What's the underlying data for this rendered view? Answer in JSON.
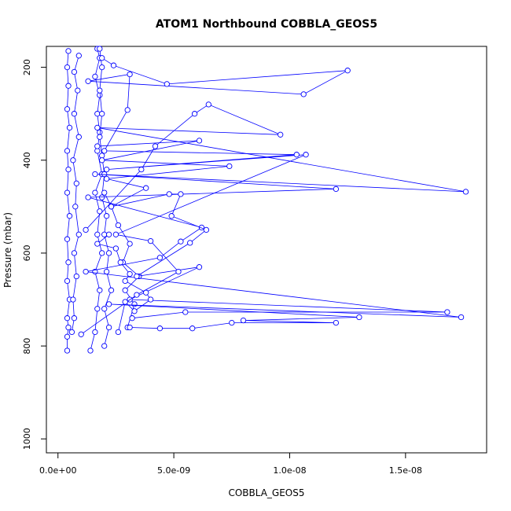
{
  "chart_data": {
    "type": "line",
    "title": "ATOM1 Northbound COBBLA_GEOS5",
    "xlabel": "COBBLA_GEOS5",
    "ylabel": "Pressure (mbar)",
    "xlim": [
      -5e-10,
      1.85e-08
    ],
    "ylim": [
      1030,
      155
    ],
    "y_reversed": true,
    "x_ticks": [
      0,
      5e-09,
      1e-08,
      1.5e-08
    ],
    "x_tick_labels": [
      "0.0e+00",
      "5.0e-09",
      "1.0e-08",
      "1.5e-08"
    ],
    "y_ticks": [
      200,
      400,
      600,
      800,
      1000
    ],
    "y_tick_labels": [
      "200",
      "400",
      "600",
      "800",
      "1000"
    ],
    "marker": "open-circle",
    "color": "#0000ff",
    "grid": false,
    "legend": "none",
    "series": [
      {
        "values": [
          [
            4e-10,
            810
          ],
          [
            4e-10,
            780
          ],
          [
            4.5e-10,
            760
          ],
          [
            4e-10,
            740
          ],
          [
            5e-10,
            700
          ],
          [
            4e-10,
            660
          ],
          [
            4.5e-10,
            620
          ],
          [
            4e-10,
            570
          ],
          [
            5e-10,
            520
          ],
          [
            4e-10,
            470
          ],
          [
            4.5e-10,
            420
          ],
          [
            4e-10,
            380
          ],
          [
            5e-10,
            330
          ],
          [
            4e-10,
            290
          ],
          [
            4.5e-10,
            240
          ],
          [
            4e-10,
            200
          ],
          [
            4.5e-10,
            165
          ]
        ]
      },
      {
        "values": [
          [
            6e-10,
            770
          ],
          [
            7e-10,
            740
          ],
          [
            6.5e-10,
            700
          ],
          [
            8e-10,
            650
          ],
          [
            7e-10,
            600
          ],
          [
            9e-10,
            560
          ],
          [
            7.5e-10,
            500
          ],
          [
            8e-10,
            450
          ],
          [
            6.5e-10,
            400
          ],
          [
            9e-10,
            350
          ],
          [
            7e-10,
            300
          ],
          [
            8.5e-10,
            250
          ],
          [
            7e-10,
            210
          ],
          [
            9e-10,
            175
          ]
        ]
      },
      {
        "values": [
          [
            1.4e-09,
            810
          ],
          [
            1.6e-09,
            770
          ],
          [
            1.7e-09,
            720
          ],
          [
            1.8e-09,
            680
          ],
          [
            1.6e-09,
            640
          ],
          [
            1.9e-09,
            600
          ],
          [
            1.7e-09,
            560
          ],
          [
            1.8e-09,
            510
          ],
          [
            1.6e-09,
            470
          ],
          [
            1.9e-09,
            430
          ],
          [
            1.7e-09,
            380
          ],
          [
            1.8e-09,
            340
          ],
          [
            1.7e-09,
            300
          ],
          [
            1.8e-09,
            260
          ],
          [
            1.6e-09,
            220
          ],
          [
            1.8e-09,
            180
          ],
          [
            1.7e-09,
            160
          ]
        ]
      },
      {
        "values": [
          [
            2e-09,
            800
          ],
          [
            2.2e-09,
            760
          ],
          [
            2e-09,
            720
          ],
          [
            2.3e-09,
            680
          ],
          [
            2.1e-09,
            640
          ],
          [
            2.2e-09,
            600
          ],
          [
            2e-09,
            560
          ],
          [
            2.1e-09,
            520
          ],
          [
            1.9e-09,
            480
          ],
          [
            2e-09,
            430
          ],
          [
            1.9e-09,
            390
          ],
          [
            1.8e-09,
            350
          ],
          [
            1.9e-09,
            300
          ],
          [
            1.8e-09,
            250
          ],
          [
            1.9e-09,
            200
          ],
          [
            1.8e-09,
            160
          ]
        ]
      },
      {
        "values": [
          [
            3e-09,
            760
          ],
          [
            3.3e-09,
            710
          ],
          [
            2.9e-09,
            680
          ],
          [
            3.5e-09,
            650
          ],
          [
            2.8e-09,
            620
          ],
          [
            3.1e-09,
            580
          ],
          [
            2.6e-09,
            540
          ],
          [
            2.3e-09,
            500
          ],
          [
            2e-09,
            470
          ]
        ]
      },
      {
        "values": [
          [
            1.2e-09,
            550
          ],
          [
            3.6e-09,
            420
          ],
          [
            4.2e-09,
            370
          ],
          [
            5.9e-09,
            300
          ],
          [
            6.5e-09,
            280
          ],
          [
            9.6e-09,
            345
          ],
          [
            1.7e-09,
            330
          ],
          [
            1.76e-08,
            468
          ],
          [
            1.6e-09,
            430
          ],
          [
            1.2e-08,
            462
          ],
          [
            1.3e-09,
            480
          ],
          [
            6.2e-09,
            545
          ],
          [
            5.3e-09,
            575
          ],
          [
            4.4e-09,
            610
          ],
          [
            1.2e-09,
            640
          ],
          [
            1.74e-08,
            738
          ],
          [
            2.2e-09,
            710
          ],
          [
            1.3e-08,
            738
          ],
          [
            8e-09,
            745
          ],
          [
            1.2e-08,
            750
          ],
          [
            7.5e-09,
            750
          ],
          [
            5.8e-09,
            762
          ],
          [
            4.4e-09,
            762
          ],
          [
            3.1e-09,
            760
          ]
        ]
      },
      {
        "values": [
          [
            1.7e-09,
            370
          ],
          [
            6.1e-09,
            358
          ],
          [
            1.9e-09,
            400
          ],
          [
            7.4e-09,
            413
          ],
          [
            2.1e-09,
            440
          ],
          [
            3.8e-09,
            460
          ],
          [
            2.3e-09,
            500
          ],
          [
            4.8e-09,
            473
          ],
          [
            5.3e-09,
            473
          ],
          [
            4.9e-09,
            520
          ],
          [
            6.4e-09,
            550
          ],
          [
            5.7e-09,
            578
          ],
          [
            3.4e-09,
            650
          ],
          [
            6.1e-09,
            630
          ],
          [
            3.1e-09,
            700
          ],
          [
            1.68e-08,
            727
          ],
          [
            5.5e-09,
            727
          ],
          [
            3.2e-09,
            740
          ]
        ]
      },
      {
        "values": [
          [
            1.9e-09,
            180
          ],
          [
            2.4e-09,
            196
          ],
          [
            4.7e-09,
            236
          ],
          [
            1.25e-08,
            207
          ],
          [
            1.06e-08,
            258
          ],
          [
            1.3e-09,
            230
          ],
          [
            3.1e-09,
            215
          ],
          [
            3e-09,
            292
          ],
          [
            2e-09,
            380
          ],
          [
            1.03e-08,
            388
          ],
          [
            2.1e-09,
            420
          ],
          [
            1.07e-08,
            388
          ],
          [
            2.5e-09,
            560
          ],
          [
            4e-09,
            574
          ],
          [
            5.2e-09,
            640
          ],
          [
            3.4e-09,
            690
          ],
          [
            1e-09,
            775
          ]
        ]
      },
      {
        "values": [
          [
            2.6e-09,
            770
          ],
          [
            2.9e-09,
            705
          ],
          [
            3.3e-09,
            725
          ],
          [
            4e-09,
            700
          ],
          [
            3.8e-09,
            685
          ],
          [
            2.9e-09,
            660
          ],
          [
            3.1e-09,
            645
          ],
          [
            2.7e-09,
            620
          ],
          [
            2.5e-09,
            590
          ],
          [
            1.7e-09,
            580
          ],
          [
            2.2e-09,
            560
          ]
        ]
      }
    ]
  }
}
